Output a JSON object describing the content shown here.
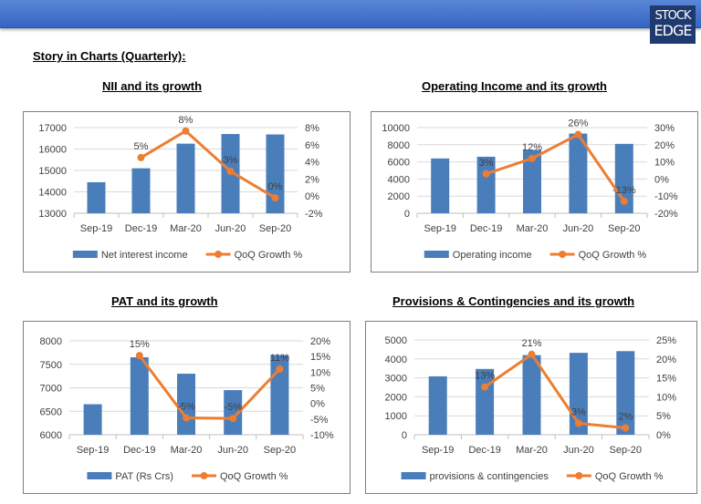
{
  "header": {
    "logo_text": [
      "STOCK",
      "EDGE"
    ]
  },
  "page_title": "Story in Charts (Quarterly):",
  "colors": {
    "bar": "#4a7ebb",
    "line": "#ed7d31",
    "grid": "#d9d9d9",
    "header": "#3f6fcc"
  },
  "chart_data": [
    {
      "type": "bar+line",
      "title": "NII and its growth",
      "categories": [
        "Sep-19",
        "Dec-19",
        "Mar-20",
        "Jun-20",
        "Sep-20"
      ],
      "series": [
        {
          "name": "Net interest income",
          "type": "bar",
          "axis": "left",
          "values": [
            14450,
            15100,
            16250,
            16700,
            16680
          ]
        },
        {
          "name": "QoQ Growth %",
          "type": "line",
          "axis": "right",
          "values": [
            null,
            4.5,
            7.6,
            2.9,
            -0.2
          ],
          "labels": [
            "",
            "5%",
            "8%",
            "3%",
            "0%"
          ]
        }
      ],
      "ylim_left": [
        13000,
        17000
      ],
      "yticks_left": [
        13000,
        14000,
        15000,
        16000,
        17000
      ],
      "ylim_right": [
        -2,
        8
      ],
      "yticks_right": [
        "-2%",
        "0%",
        "2%",
        "4%",
        "6%",
        "8%"
      ],
      "grid": true,
      "legend": "bottom"
    },
    {
      "type": "bar+line",
      "title": "Operating Income and its growth",
      "categories": [
        "Sep-19",
        "Dec-19",
        "Mar-20",
        "Jun-20",
        "Sep-20"
      ],
      "series": [
        {
          "name": "Operating income",
          "type": "bar",
          "axis": "left",
          "values": [
            6400,
            6600,
            7400,
            9300,
            8100
          ]
        },
        {
          "name": "QoQ Growth %",
          "type": "line",
          "axis": "right",
          "values": [
            null,
            3,
            12,
            26,
            -13
          ],
          "labels": [
            "",
            "3%",
            "12%",
            "26%",
            "-13%"
          ]
        }
      ],
      "ylim_left": [
        0,
        10000
      ],
      "yticks_left": [
        0,
        2000,
        4000,
        6000,
        8000,
        10000
      ],
      "ylim_right": [
        -20,
        30
      ],
      "yticks_right": [
        "-20%",
        "-10%",
        "0%",
        "10%",
        "20%",
        "30%"
      ],
      "grid": true,
      "legend": "bottom"
    },
    {
      "type": "bar+line",
      "title": "PAT and its growth",
      "categories": [
        "Sep-19",
        "Dec-19",
        "Mar-20",
        "Jun-20",
        "Sep-20"
      ],
      "series": [
        {
          "name": "PAT (Rs Crs)",
          "type": "bar",
          "axis": "left",
          "values": [
            6650,
            7650,
            7300,
            6950,
            7700
          ]
        },
        {
          "name": "QoQ Growth %",
          "type": "line",
          "axis": "right",
          "values": [
            null,
            15.3,
            -4.6,
            -4.8,
            11
          ],
          "labels": [
            "",
            "15%",
            "-5%",
            "-5%",
            "11%"
          ]
        }
      ],
      "ylim_left": [
        6000,
        8000
      ],
      "yticks_left": [
        6000,
        6500,
        7000,
        7500,
        8000
      ],
      "ylim_right": [
        -10,
        20
      ],
      "yticks_right": [
        "-10%",
        "-5%",
        "0%",
        "5%",
        "10%",
        "15%",
        "20%"
      ],
      "grid": true,
      "legend": "bottom"
    },
    {
      "type": "bar+line",
      "title": "Provisions & Contingencies and its growth",
      "categories": [
        "Sep-19",
        "Dec-19",
        "Mar-20",
        "Jun-20",
        "Sep-20"
      ],
      "series": [
        {
          "name": "provisions & contingencies",
          "type": "bar",
          "axis": "left",
          "values": [
            3080,
            3470,
            4200,
            4320,
            4410
          ]
        },
        {
          "name": "QoQ Growth %",
          "type": "line",
          "axis": "right",
          "values": [
            null,
            12.6,
            21.2,
            3.0,
            1.8
          ],
          "labels": [
            "",
            "13%",
            "21%",
            "3%",
            "2%"
          ]
        }
      ],
      "ylim_left": [
        0,
        5000
      ],
      "yticks_left": [
        0,
        1000,
        2000,
        3000,
        4000,
        5000
      ],
      "ylim_right": [
        0,
        25
      ],
      "yticks_right": [
        "0%",
        "5%",
        "10%",
        "15%",
        "20%",
        "25%"
      ],
      "grid": true,
      "legend": "bottom"
    }
  ]
}
